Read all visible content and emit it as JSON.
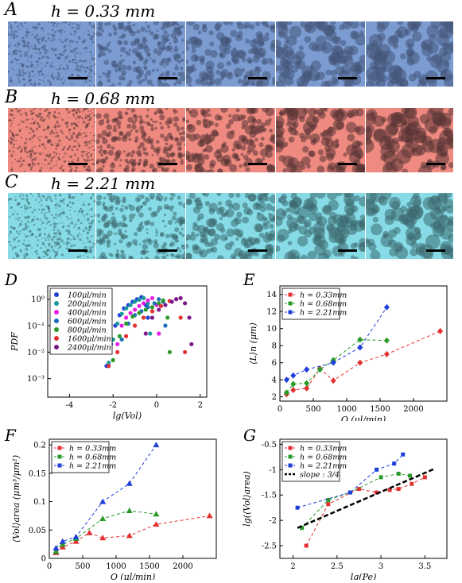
{
  "rows": [
    {
      "letter": "A",
      "title": "h = 0.33 mm",
      "color": "#7b9bd1",
      "drop": "#45567a"
    },
    {
      "letter": "B",
      "title": "h = 0.68 mm",
      "color": "#ee8a80",
      "drop": "#5a3535"
    },
    {
      "letter": "C",
      "title": "h = 2.21 mm",
      "color": "#86dbe6",
      "drop": "#3d6a70"
    }
  ],
  "panels": {
    "D": "D",
    "E": "E",
    "F": "F",
    "G": "G"
  },
  "chart_data": [
    {
      "id": "D",
      "type": "scatter",
      "xlabel": "lg(Vol)",
      "ylabel": "PDF",
      "xlim": [
        -5,
        2.3
      ],
      "ylim_log10": [
        -3.7,
        0.5
      ],
      "yscale": "log",
      "xticks": [
        "-4",
        "-2",
        "0",
        "2"
      ],
      "yticks": [
        "10⁻³",
        "10⁻²",
        "10⁻¹",
        "10⁰"
      ],
      "legend_placement": "top-left",
      "series": [
        {
          "name": "100μl/min",
          "color": "#1f3fd9",
          "x": [
            -2.3,
            -2.1,
            -1.9,
            -1.7,
            -1.5,
            -1.3,
            -1.1,
            -0.9,
            -0.7,
            -0.6,
            -0.5,
            -0.4
          ],
          "y": [
            0.003,
            0.02,
            0.1,
            0.25,
            0.45,
            0.6,
            0.8,
            1.0,
            1.2,
            1.1,
            0.6,
            0.2
          ]
        },
        {
          "name": "200μl/min",
          "color": "#1b9a9a",
          "x": [
            -2.2,
            -2.0,
            -1.8,
            -1.6,
            -1.4,
            -1.2,
            -1.0,
            -0.8,
            -0.6,
            -0.4,
            -0.3
          ],
          "y": [
            0.004,
            0.03,
            0.12,
            0.28,
            0.45,
            0.6,
            0.8,
            0.95,
            1.1,
            0.7,
            0.05
          ]
        },
        {
          "name": "400μl/min",
          "color": "#e520e5",
          "x": [
            -1.8,
            -1.6,
            -1.4,
            -1.2,
            -1.0,
            -0.8,
            -0.6,
            -0.4,
            -0.2,
            0.0,
            0.1
          ],
          "y": [
            0.02,
            0.1,
            0.2,
            0.3,
            0.4,
            0.55,
            0.7,
            0.9,
            1.1,
            0.6,
            0.05
          ]
        },
        {
          "name": "600μl/min",
          "color": "#1d6fb8",
          "x": [
            -1.6,
            -1.3,
            -1.0,
            -0.7,
            -0.4,
            -0.1,
            0.1,
            0.3,
            0.4
          ],
          "y": [
            0.03,
            0.12,
            0.25,
            0.35,
            0.5,
            0.7,
            1.0,
            0.8,
            0.1
          ]
        },
        {
          "name": "800μl/min",
          "color": "#2a9a2a",
          "x": [
            -2.0,
            -1.7,
            -1.4,
            -1.1,
            -0.8,
            -0.5,
            -0.2,
            0.1,
            0.3,
            0.5,
            0.6
          ],
          "y": [
            0.005,
            0.04,
            0.12,
            0.22,
            0.3,
            0.4,
            0.5,
            0.7,
            0.9,
            0.2,
            0.01
          ]
        },
        {
          "name": "1600μl/min",
          "color": "#e23030",
          "x": [
            -2.2,
            -1.8,
            -1.4,
            -1.0,
            -0.6,
            -0.2,
            0.2,
            0.6,
            0.9,
            1.1,
            1.3
          ],
          "y": [
            0.003,
            0.01,
            0.04,
            0.1,
            0.2,
            0.35,
            0.55,
            0.85,
            1.0,
            0.2,
            0.01
          ]
        },
        {
          "name": "2400μl/min",
          "color": "#7a1a8a",
          "x": [
            -0.5,
            -0.2,
            0.1,
            0.4,
            0.7,
            0.9,
            1.1,
            1.3,
            1.5,
            1.6
          ],
          "y": [
            0.05,
            0.2,
            0.4,
            0.6,
            0.8,
            1.0,
            1.1,
            0.7,
            0.2,
            0.02
          ]
        }
      ]
    },
    {
      "id": "E",
      "type": "line",
      "xlabel": "Q (μl/min)",
      "ylabel": "⟨L⟩n (μm)",
      "xlim": [
        0,
        2500
      ],
      "ylim": [
        1.5,
        15
      ],
      "xticks": [
        "0",
        "500",
        "1000",
        "1500",
        "2000"
      ],
      "yticks": [
        "2",
        "4",
        "6",
        "8",
        "10",
        "12",
        "14"
      ],
      "legend_placement": "top-left",
      "series": [
        {
          "name": "h = 0.33mm",
          "color": "#e23030",
          "marker": "diamond",
          "x": [
            100,
            200,
            400,
            600,
            800,
            1200,
            1600,
            2400
          ],
          "y": [
            2.3,
            2.8,
            3.0,
            5.3,
            3.9,
            6.0,
            7.0,
            9.7
          ]
        },
        {
          "name": "h = 0.68mm",
          "color": "#2a9a2a",
          "marker": "diamond",
          "x": [
            100,
            200,
            400,
            600,
            800,
            1200,
            1600
          ],
          "y": [
            2.5,
            3.5,
            3.6,
            5.2,
            6.3,
            8.7,
            8.6
          ]
        },
        {
          "name": "h = 2.21mm",
          "color": "#1f3fd9",
          "marker": "diamond",
          "x": [
            100,
            200,
            400,
            800,
            1200,
            1600
          ],
          "y": [
            4.0,
            4.5,
            5.2,
            6.0,
            7.8,
            12.5
          ]
        }
      ]
    },
    {
      "id": "F",
      "type": "line",
      "xlabel": "Q (μl/min)",
      "ylabel": "⟨Vol⟩area (μm³/μm²)",
      "xlim": [
        0,
        2500
      ],
      "ylim": [
        0,
        0.21
      ],
      "xticks": [
        "0",
        "500",
        "1000",
        "1500",
        "2000"
      ],
      "yticks": [
        "0",
        "0.05",
        "0.1",
        "0.15",
        "0.2"
      ],
      "legend_placement": "top-left",
      "series": [
        {
          "name": "h = 0.33mm",
          "color": "#e23030",
          "marker": "triangle",
          "x": [
            100,
            200,
            400,
            600,
            800,
            1200,
            1600,
            2400
          ],
          "y": [
            0.01,
            0.02,
            0.03,
            0.045,
            0.036,
            0.04,
            0.06,
            0.075
          ]
        },
        {
          "name": "h = 0.68mm",
          "color": "#2a9a2a",
          "marker": "triangle",
          "x": [
            100,
            200,
            400,
            800,
            1200,
            1600
          ],
          "y": [
            0.012,
            0.025,
            0.035,
            0.07,
            0.084,
            0.078
          ]
        },
        {
          "name": "h = 2.21mm",
          "color": "#1f3fd9",
          "marker": "triangle",
          "x": [
            100,
            200,
            400,
            800,
            1200,
            1600
          ],
          "y": [
            0.018,
            0.03,
            0.038,
            0.1,
            0.132,
            0.2
          ]
        }
      ]
    },
    {
      "id": "G",
      "type": "line",
      "xlabel": "lg(Pe)",
      "ylabel": "lg(⟨Vol⟩area)",
      "xlim": [
        1.85,
        3.75
      ],
      "ylim": [
        -2.75,
        -0.4
      ],
      "xticks": [
        "2",
        "2.5",
        "3",
        "3.5"
      ],
      "yticks": [
        "-2.5",
        "-2",
        "-1.5",
        "-1",
        "-0.5"
      ],
      "legend_placement": "top-left",
      "series": [
        {
          "name": "h = 0.33mm",
          "color": "#e23030",
          "marker": "square",
          "x": [
            2.15,
            2.4,
            2.75,
            2.95,
            3.1,
            3.2,
            3.35,
            3.5
          ],
          "y": [
            -2.5,
            -1.68,
            -1.38,
            -1.45,
            -1.4,
            -1.38,
            -1.28,
            -1.15
          ]
        },
        {
          "name": "h = 0.68mm",
          "color": "#2a9a2a",
          "marker": "square",
          "x": [
            2.1,
            2.4,
            2.65,
            3.0,
            3.2,
            3.33
          ],
          "y": [
            -2.15,
            -1.6,
            -1.45,
            -1.15,
            -1.08,
            -1.12
          ]
        },
        {
          "name": "h = 2.21mm",
          "color": "#1f3fd9",
          "marker": "square",
          "x": [
            2.05,
            2.65,
            2.95,
            3.15,
            3.25
          ],
          "y": [
            -1.75,
            -1.45,
            -1.0,
            -0.88,
            -0.7
          ]
        },
        {
          "name": "slope : 3/4",
          "color": "#000000",
          "marker": "none",
          "x": [
            2.05,
            3.6
          ],
          "y": [
            -2.15,
            -0.99
          ]
        }
      ]
    }
  ]
}
